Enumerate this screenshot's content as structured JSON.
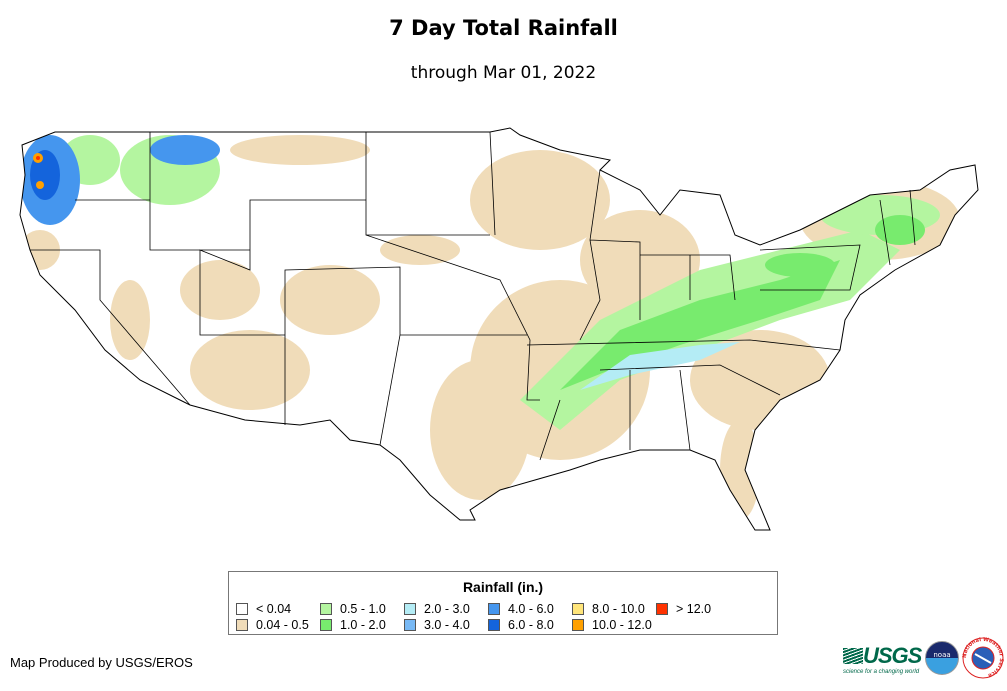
{
  "title": "7 Day Total Rainfall",
  "subtitle": "through Mar 01, 2022",
  "legend": {
    "title": "Rainfall (in.)",
    "items": [
      {
        "label": "< 0.04",
        "color": "#ffffff"
      },
      {
        "label": "0.5 - 1.0",
        "color": "#b4f5a0"
      },
      {
        "label": "2.0 - 3.0",
        "color": "#b4ecf5"
      },
      {
        "label": "4.0 - 6.0",
        "color": "#4596ee"
      },
      {
        "label": "8.0 - 10.0",
        "color": "#ffe57a"
      },
      {
        "label": "> 12.0",
        "color": "#ff3200"
      },
      {
        "label": "0.04 - 0.5",
        "color": "#f0dcb9"
      },
      {
        "label": "1.0 - 2.0",
        "color": "#78eb6e"
      },
      {
        "label": "3.0 - 4.0",
        "color": "#78b9f5"
      },
      {
        "label": "6.0 - 8.0",
        "color": "#1464dc"
      },
      {
        "label": "10.0 - 12.0",
        "color": "#ffa000"
      }
    ]
  },
  "credit": "Map Produced by USGS/EROS",
  "logos": {
    "usgs": "USGS",
    "usgs_tagline": "science for a changing world",
    "noaa": "noaa",
    "nws": "National Weather Service"
  }
}
